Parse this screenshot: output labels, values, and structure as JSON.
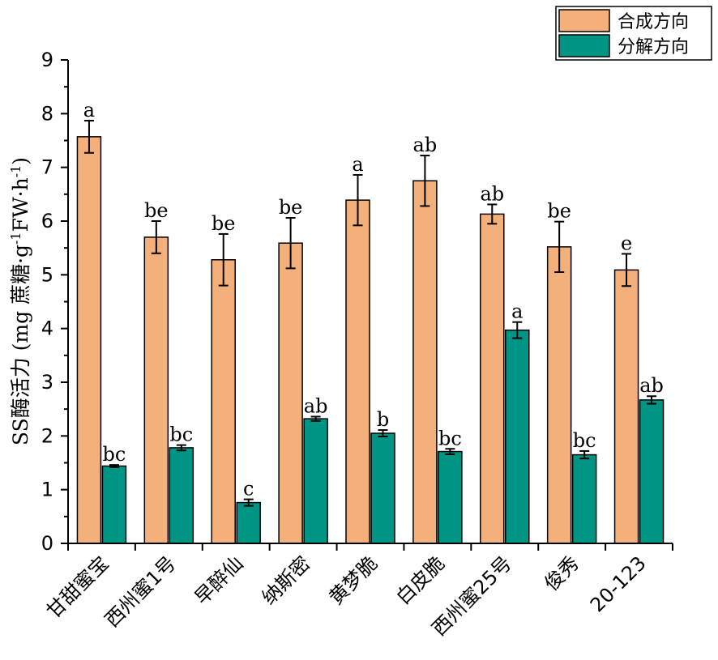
{
  "chart_data": {
    "type": "bar",
    "categories": [
      "甘甜蜜宝",
      "西州蜜1号",
      "早醉仙",
      "纳斯密",
      "黄梦脆",
      "白皮脆",
      "西州蜜25号",
      "俊秀",
      "20-123"
    ],
    "ylabel_parts": [
      "SS酶活力 (mg 蔗糖·g",
      "-1",
      "FW·h",
      "-1",
      ")"
    ],
    "ylim": [
      0,
      9
    ],
    "yticks": [
      "0",
      "1",
      "2",
      "3",
      "4",
      "5",
      "6",
      "7",
      "8",
      "9"
    ],
    "grid": false,
    "legend_position": "top-right",
    "series": [
      {
        "name": "合成方向",
        "color": "#f3b07a",
        "values": [
          7.57,
          5.7,
          5.28,
          5.59,
          6.39,
          6.75,
          6.13,
          5.52,
          5.09
        ],
        "errors": [
          0.3,
          0.3,
          0.48,
          0.47,
          0.47,
          0.47,
          0.18,
          0.47,
          0.3
        ],
        "labels": [
          "a",
          "be",
          "be",
          "be",
          "a",
          "ab",
          "ab",
          "be",
          "e"
        ]
      },
      {
        "name": "分解方向",
        "color": "#009485",
        "values": [
          1.44,
          1.78,
          0.76,
          2.32,
          2.05,
          1.71,
          3.97,
          1.65,
          2.67
        ],
        "errors": [
          0.02,
          0.05,
          0.06,
          0.04,
          0.06,
          0.05,
          0.15,
          0.07,
          0.07
        ],
        "labels": [
          "bc",
          "bc",
          "c",
          "ab",
          "b",
          "bc",
          "a",
          "bc",
          "ab"
        ]
      }
    ]
  }
}
